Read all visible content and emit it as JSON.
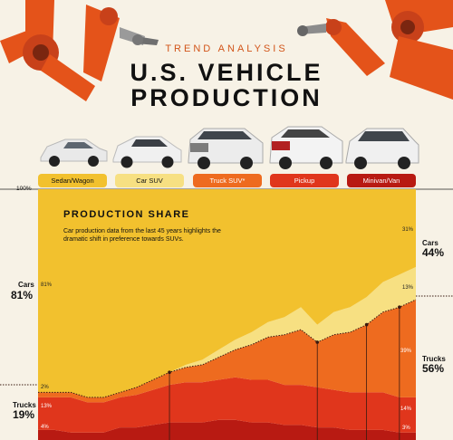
{
  "header": {
    "kicker": "TREND ANALYSIS",
    "title_line1": "U.S. VEHICLE",
    "title_line2": "PRODUCTION"
  },
  "legend": [
    {
      "label": "Sedan/Wagon",
      "color": "#f2c12e",
      "text": "#111"
    },
    {
      "label": "Car SUV",
      "color": "#f7e082",
      "text": "#111"
    },
    {
      "label": "Truck SUV*",
      "color": "#ee6b1f",
      "text": "#fff"
    },
    {
      "label": "Pickup",
      "color": "#e0361c",
      "text": "#fff"
    },
    {
      "label": "Minivan/Van",
      "color": "#b81a12",
      "text": "#fff"
    }
  ],
  "left_labels": {
    "cars_label": "Cars",
    "cars_value": "81%",
    "trucks_label": "Trucks",
    "trucks_value": "19%"
  },
  "right_labels": {
    "cars_label": "Cars",
    "cars_value": "44%",
    "trucks_label": "Trucks",
    "trucks_value": "56%"
  },
  "chart_data": {
    "type": "area",
    "title": "PRODUCTION SHARE",
    "subtitle": "Car production data from the last 45 years highlights the dramatic shift in preference towards SUVs.",
    "ylabel_top": "100%",
    "ylim": [
      0,
      100
    ],
    "stacked": true,
    "x_count": 24,
    "series": [
      {
        "name": "Minivan/Van",
        "color": "#b81a12",
        "values": [
          4,
          4,
          3,
          3,
          3,
          5,
          5,
          6,
          7,
          7,
          7,
          8,
          8,
          7,
          7,
          6,
          6,
          5,
          5,
          4,
          4,
          4,
          3,
          3
        ]
      },
      {
        "name": "Pickup",
        "color": "#e0361c",
        "values": [
          13,
          13,
          14,
          12,
          12,
          12,
          13,
          14,
          15,
          16,
          16,
          16,
          17,
          17,
          17,
          16,
          16,
          16,
          15,
          15,
          15,
          15,
          14,
          14
        ]
      },
      {
        "name": "Truck SUV*",
        "color": "#ee6b1f",
        "values": [
          2,
          2,
          2,
          2,
          2,
          2,
          3,
          4,
          5,
          6,
          7,
          9,
          11,
          14,
          17,
          20,
          22,
          18,
          22,
          24,
          27,
          32,
          36,
          39
        ]
      },
      {
        "name": "Car SUV",
        "color": "#f7e082",
        "values": [
          0,
          0,
          0,
          0,
          0,
          0,
          0,
          0,
          0,
          1,
          2,
          3,
          4,
          5,
          6,
          7,
          9,
          7,
          9,
          10,
          11,
          12,
          13,
          13
        ]
      },
      {
        "name": "Sedan/Wagon",
        "color": "#f2c12e",
        "values": [
          81,
          81,
          81,
          83,
          83,
          81,
          79,
          76,
          73,
          70,
          68,
          64,
          60,
          57,
          53,
          51,
          47,
          54,
          49,
          47,
          43,
          37,
          34,
          31
        ]
      }
    ],
    "end_labels": {
      "sedan_start": "81%",
      "sedan_end": "31%",
      "carsuv_end": "13%",
      "trucksuv_end": "39%",
      "pickup_start": "13%",
      "pickup_end": "14%",
      "minivan_start": "4%",
      "minivan_end": "3%",
      "trucksuv_start": "2%"
    },
    "truck_share_line": [
      19,
      19,
      19,
      17,
      17,
      19,
      21,
      24,
      27,
      29,
      30,
      33,
      36,
      38,
      41,
      42,
      44,
      39,
      42,
      43,
      46,
      51,
      53,
      56
    ]
  }
}
